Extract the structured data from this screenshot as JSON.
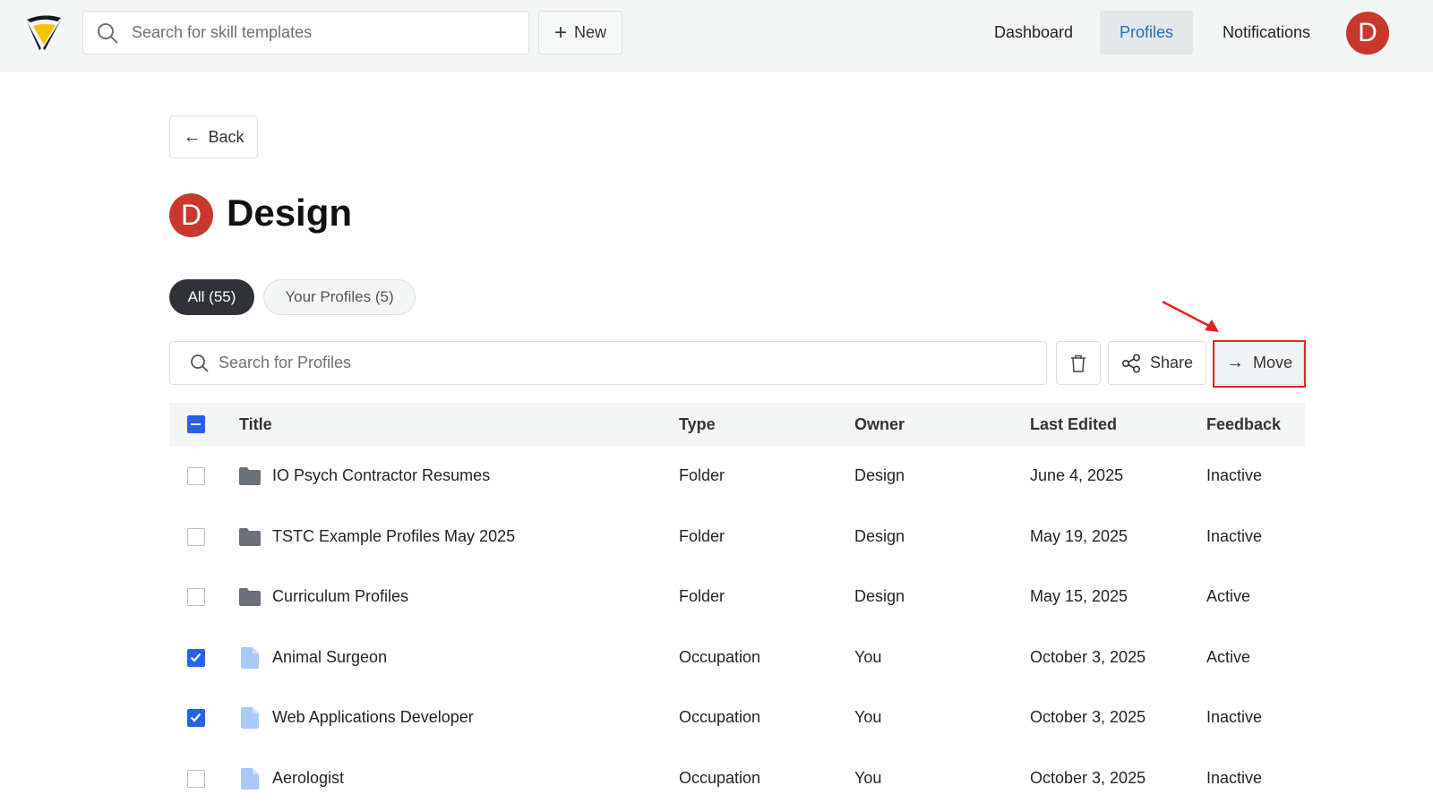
{
  "header": {
    "search_placeholder": "Search for skill templates",
    "new_label": "New",
    "nav": [
      "Dashboard",
      "Profiles",
      "Notifications"
    ],
    "active_nav": "Profiles",
    "avatar_letter": "D"
  },
  "page": {
    "back_label": "Back",
    "avatar_letter": "D",
    "title": "Design",
    "tabs": [
      {
        "label": "All (55)",
        "active": true
      },
      {
        "label": "Your Profiles (5)",
        "active": false
      }
    ]
  },
  "toolbar": {
    "search_placeholder": "Search for Profiles",
    "share_label": "Share",
    "move_label": "Move"
  },
  "table": {
    "columns": [
      "Title",
      "Type",
      "Owner",
      "Last Edited",
      "Feedback"
    ],
    "rows": [
      {
        "checked": false,
        "icon": "folder-icon",
        "title": "IO Psych Contractor Resumes",
        "type": "Folder",
        "owner": "Design",
        "edited": "June 4, 2025",
        "feedback": "Inactive"
      },
      {
        "checked": false,
        "icon": "folder-icon",
        "title": "TSTC Example Profiles May 2025",
        "type": "Folder",
        "owner": "Design",
        "edited": "May 19, 2025",
        "feedback": "Inactive"
      },
      {
        "checked": false,
        "icon": "folder-icon",
        "title": "Curriculum Profiles",
        "type": "Folder",
        "owner": "Design",
        "edited": "May 15, 2025",
        "feedback": "Active"
      },
      {
        "checked": true,
        "icon": "document-icon",
        "title": "Animal Surgeon",
        "type": "Occupation",
        "owner": "You",
        "edited": "October 3, 2025",
        "feedback": "Active"
      },
      {
        "checked": true,
        "icon": "document-icon",
        "title": "Web Applications Developer",
        "type": "Occupation",
        "owner": "You",
        "edited": "October 3, 2025",
        "feedback": "Inactive"
      },
      {
        "checked": false,
        "icon": "document-icon",
        "title": "Aerologist",
        "type": "Occupation",
        "owner": "You",
        "edited": "October 3, 2025",
        "feedback": "Inactive"
      }
    ]
  },
  "colors": {
    "accent": "#2563eb",
    "avatar": "#c8382c",
    "highlight": "#e8221b"
  }
}
